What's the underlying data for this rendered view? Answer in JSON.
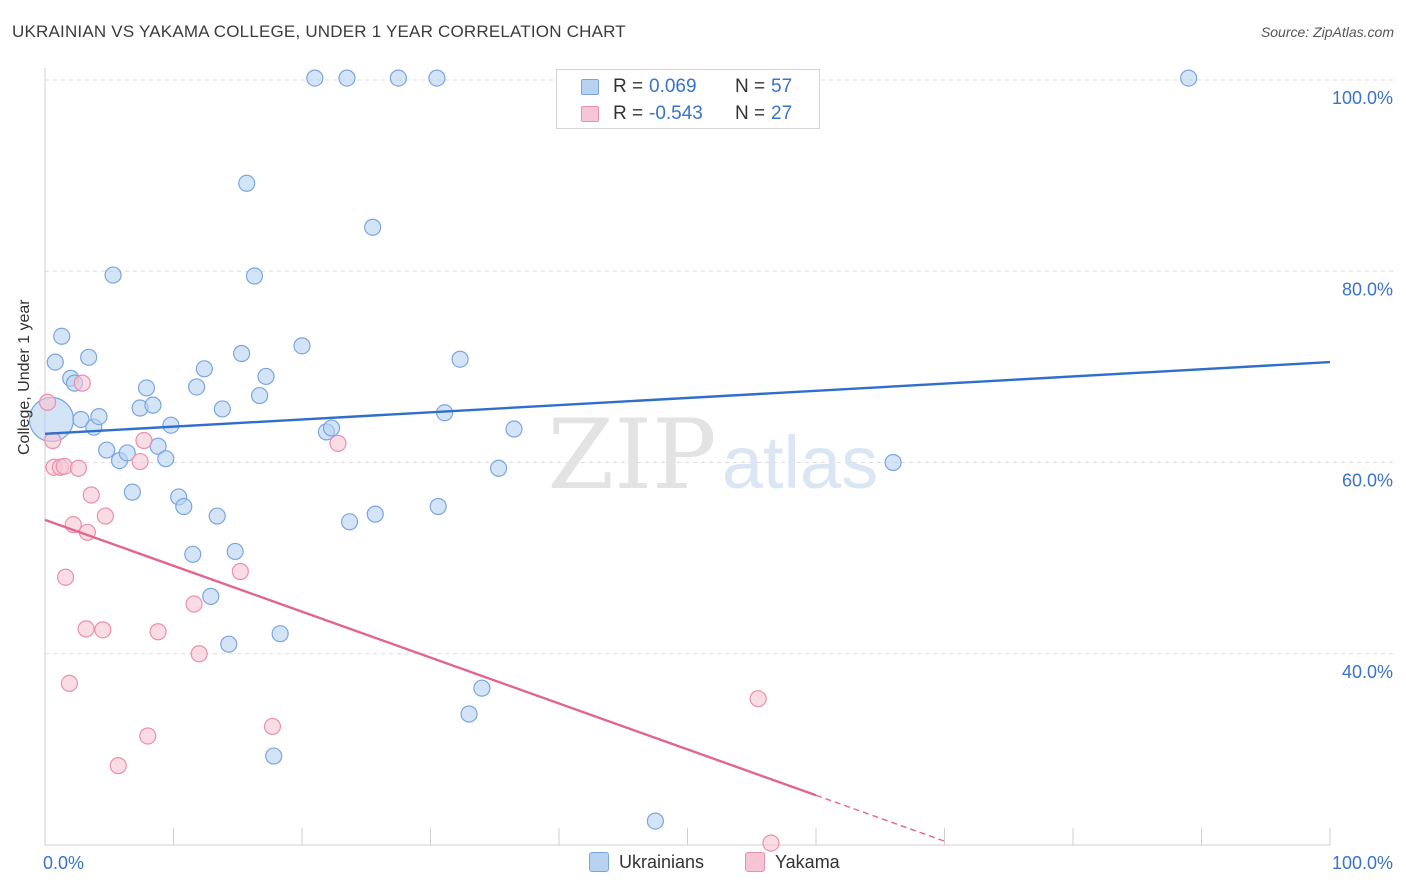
{
  "header": {
    "title": "UKRAINIAN VS YAKAMA COLLEGE, UNDER 1 YEAR CORRELATION CHART",
    "source": "Source: ZipAtlas.com"
  },
  "watermark": {
    "zip": "ZIP",
    "atlas": "atlas"
  },
  "legend": {
    "rows": [
      {
        "r_label": "R =",
        "r_value": "0.069",
        "n_label": "N =",
        "n_value": "57"
      },
      {
        "r_label": "R =",
        "r_value": "-0.543",
        "n_label": "N =",
        "n_value": "27"
      }
    ]
  },
  "bottom_legend": {
    "series1": "Ukrainians",
    "series2": "Yakama"
  },
  "colors": {
    "blue_fill": "#b8d2f2",
    "blue_stroke": "#7aa6df",
    "blue_line": "#2f6fcb",
    "pink_fill": "#f7c4d4",
    "pink_stroke": "#ec8fac",
    "pink_line": "#e0668f",
    "grid": "#dcdcdc",
    "axis_label": "#3a73c9"
  },
  "chart_data": {
    "type": "scatter",
    "title": "UKRAINIAN VS YAKAMA COLLEGE, UNDER 1 YEAR CORRELATION CHART",
    "xlabel": "",
    "ylabel": "College, Under 1 year",
    "xlim": [
      0,
      100
    ],
    "ylim": [
      20,
      100
    ],
    "x_tick_labels": [
      "0.0%",
      "100.0%"
    ],
    "y_ticks": [
      40,
      60,
      80,
      100
    ],
    "y_tick_labels": [
      "40.0%",
      "60.0%",
      "80.0%",
      "100.0%"
    ],
    "series": [
      {
        "name": "Ukrainians",
        "r": 0.069,
        "n": 57,
        "trend": {
          "x": [
            0,
            100
          ],
          "y": [
            63.0,
            70.5
          ]
        },
        "points": [
          {
            "x": 0.5,
            "y": 64.5,
            "big": true
          },
          {
            "x": 0.8,
            "y": 70.5
          },
          {
            "x": 1.3,
            "y": 73.2
          },
          {
            "x": 2.0,
            "y": 68.8
          },
          {
            "x": 2.3,
            "y": 68.3
          },
          {
            "x": 2.8,
            "y": 64.5
          },
          {
            "x": 3.4,
            "y": 71.0
          },
          {
            "x": 3.8,
            "y": 63.7
          },
          {
            "x": 4.2,
            "y": 64.8
          },
          {
            "x": 4.8,
            "y": 61.3
          },
          {
            "x": 5.3,
            "y": 79.6
          },
          {
            "x": 5.8,
            "y": 60.2
          },
          {
            "x": 6.4,
            "y": 61.0
          },
          {
            "x": 6.8,
            "y": 56.9
          },
          {
            "x": 7.4,
            "y": 65.7
          },
          {
            "x": 7.9,
            "y": 67.8
          },
          {
            "x": 8.4,
            "y": 66.0
          },
          {
            "x": 8.8,
            "y": 61.7
          },
          {
            "x": 9.4,
            "y": 60.4
          },
          {
            "x": 9.8,
            "y": 63.9
          },
          {
            "x": 10.4,
            "y": 56.4
          },
          {
            "x": 10.8,
            "y": 55.4
          },
          {
            "x": 11.5,
            "y": 50.4
          },
          {
            "x": 11.8,
            "y": 67.9
          },
          {
            "x": 12.4,
            "y": 69.8
          },
          {
            "x": 12.9,
            "y": 46.0
          },
          {
            "x": 13.4,
            "y": 54.4
          },
          {
            "x": 13.8,
            "y": 65.6
          },
          {
            "x": 14.3,
            "y": 41.0
          },
          {
            "x": 14.8,
            "y": 50.7
          },
          {
            "x": 15.3,
            "y": 71.4
          },
          {
            "x": 15.7,
            "y": 89.2
          },
          {
            "x": 16.3,
            "y": 79.5
          },
          {
            "x": 16.7,
            "y": 67.0
          },
          {
            "x": 17.2,
            "y": 69.0
          },
          {
            "x": 17.8,
            "y": 29.3
          },
          {
            "x": 18.3,
            "y": 42.1
          },
          {
            "x": 20.0,
            "y": 72.2
          },
          {
            "x": 21.0,
            "y": 100.2
          },
          {
            "x": 21.9,
            "y": 63.2
          },
          {
            "x": 22.3,
            "y": 63.6
          },
          {
            "x": 23.5,
            "y": 100.2
          },
          {
            "x": 23.7,
            "y": 53.8
          },
          {
            "x": 25.5,
            "y": 84.6
          },
          {
            "x": 25.7,
            "y": 54.6
          },
          {
            "x": 27.5,
            "y": 100.2
          },
          {
            "x": 30.5,
            "y": 100.2
          },
          {
            "x": 30.6,
            "y": 55.4
          },
          {
            "x": 31.1,
            "y": 65.2
          },
          {
            "x": 32.3,
            "y": 70.8
          },
          {
            "x": 33.0,
            "y": 33.7
          },
          {
            "x": 34.0,
            "y": 36.4
          },
          {
            "x": 35.3,
            "y": 59.4
          },
          {
            "x": 36.5,
            "y": 63.5
          },
          {
            "x": 47.5,
            "y": 22.5
          },
          {
            "x": 66.0,
            "y": 60.0
          },
          {
            "x": 89.0,
            "y": 100.2
          }
        ]
      },
      {
        "name": "Yakama",
        "r": -0.543,
        "n": 27,
        "trend": {
          "x": [
            0,
            60
          ],
          "y": [
            54.0,
            25.2
          ]
        },
        "trend_dashed": {
          "x": [
            60,
            70
          ],
          "y": [
            25.2,
            20.4
          ]
        },
        "points": [
          {
            "x": 0.2,
            "y": 66.3
          },
          {
            "x": 0.6,
            "y": 62.3
          },
          {
            "x": 0.7,
            "y": 59.5
          },
          {
            "x": 1.2,
            "y": 59.5
          },
          {
            "x": 1.5,
            "y": 59.6
          },
          {
            "x": 1.6,
            "y": 48.0
          },
          {
            "x": 1.9,
            "y": 36.9
          },
          {
            "x": 2.2,
            "y": 53.5
          },
          {
            "x": 2.6,
            "y": 59.4
          },
          {
            "x": 2.9,
            "y": 68.3
          },
          {
            "x": 3.2,
            "y": 42.6
          },
          {
            "x": 3.3,
            "y": 52.7
          },
          {
            "x": 3.6,
            "y": 56.6
          },
          {
            "x": 4.5,
            "y": 42.5
          },
          {
            "x": 4.7,
            "y": 54.4
          },
          {
            "x": 5.7,
            "y": 28.3
          },
          {
            "x": 7.4,
            "y": 60.1
          },
          {
            "x": 7.7,
            "y": 62.3
          },
          {
            "x": 8.0,
            "y": 31.4
          },
          {
            "x": 8.8,
            "y": 42.3
          },
          {
            "x": 11.6,
            "y": 45.2
          },
          {
            "x": 12.0,
            "y": 40.0
          },
          {
            "x": 15.2,
            "y": 48.6
          },
          {
            "x": 17.7,
            "y": 32.4
          },
          {
            "x": 22.8,
            "y": 62.0
          },
          {
            "x": 55.5,
            "y": 35.3
          },
          {
            "x": 56.5,
            "y": 20.2
          }
        ]
      }
    ]
  }
}
